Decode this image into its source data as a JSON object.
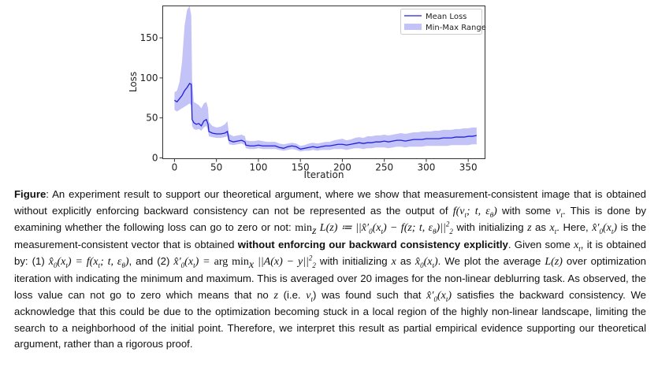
{
  "chart_data": {
    "type": "line",
    "xlabel": "Iteration",
    "ylabel": "Loss",
    "xlim": [
      -14,
      370
    ],
    "ylim": [
      -1,
      190
    ],
    "xticks": [
      0,
      50,
      100,
      150,
      200,
      250,
      300,
      350
    ],
    "yticks": [
      0,
      50,
      100,
      150
    ],
    "legend_position": "top-right",
    "grid": false,
    "series": [
      {
        "name": "Mean Loss",
        "color": "#2020dd",
        "x": [
          0,
          3,
          6,
          9,
          12,
          15,
          18,
          20,
          21,
          23,
          26,
          29,
          32,
          35,
          38,
          40,
          41,
          45,
          50,
          55,
          60,
          63,
          65,
          70,
          75,
          80,
          84,
          85,
          90,
          95,
          100,
          105,
          110,
          115,
          120,
          125,
          130,
          135,
          140,
          145,
          150,
          155,
          160,
          165,
          170,
          175,
          180,
          185,
          190,
          195,
          200,
          205,
          210,
          215,
          220,
          225,
          230,
          235,
          240,
          245,
          250,
          255,
          260,
          265,
          270,
          275,
          280,
          285,
          290,
          295,
          300,
          305,
          310,
          315,
          320,
          325,
          330,
          335,
          340,
          345,
          350,
          355,
          360
        ],
        "values": [
          72,
          70,
          74,
          78,
          84,
          88,
          93,
          92,
          48,
          44,
          42,
          43,
          40,
          46,
          48,
          42,
          33,
          31,
          30,
          30,
          31,
          33,
          22,
          20,
          21,
          22,
          20,
          16,
          15,
          15,
          16,
          15,
          15,
          15,
          15,
          13,
          12,
          14,
          15,
          14,
          11,
          12,
          13,
          14,
          13,
          14,
          15,
          15,
          16,
          17,
          17,
          16,
          17,
          18,
          19,
          18,
          19,
          19,
          20,
          20,
          21,
          20,
          21,
          22,
          22,
          21,
          22,
          23,
          23,
          23,
          24,
          24,
          24,
          24,
          25,
          25,
          25,
          26,
          26,
          26,
          27,
          27,
          28
        ]
      },
      {
        "name": "Min-Max Range",
        "color": "#aaaaf5",
        "x": [
          0,
          3,
          6,
          9,
          12,
          15,
          18,
          20,
          21,
          23,
          26,
          29,
          32,
          35,
          38,
          40,
          41,
          45,
          50,
          55,
          60,
          63,
          65,
          70,
          75,
          80,
          84,
          85,
          90,
          95,
          100,
          105,
          110,
          115,
          120,
          125,
          130,
          135,
          140,
          145,
          150,
          155,
          160,
          165,
          170,
          175,
          180,
          185,
          190,
          195,
          200,
          205,
          210,
          215,
          220,
          225,
          230,
          235,
          240,
          245,
          250,
          255,
          260,
          265,
          270,
          275,
          280,
          285,
          290,
          295,
          300,
          305,
          310,
          315,
          320,
          325,
          330,
          335,
          340,
          345,
          350,
          355,
          360
        ],
        "min": [
          60,
          58,
          60,
          62,
          64,
          66,
          68,
          66,
          40,
          36,
          35,
          36,
          34,
          38,
          40,
          34,
          27,
          26,
          25,
          25,
          26,
          27,
          17,
          16,
          17,
          18,
          16,
          12,
          11,
          11,
          12,
          11,
          11,
          11,
          11,
          10,
          9,
          10,
          11,
          10,
          8,
          9,
          9,
          10,
          9,
          10,
          10,
          10,
          11,
          11,
          11,
          10,
          11,
          12,
          12,
          11,
          12,
          12,
          13,
          13,
          13,
          12,
          13,
          14,
          14,
          13,
          14,
          14,
          14,
          14,
          15,
          15,
          15,
          15,
          15,
          15,
          16,
          16,
          16,
          16,
          16,
          17,
          17
        ],
        "max": [
          82,
          84,
          95,
          120,
          165,
          185,
          190,
          178,
          98,
          70,
          68,
          66,
          62,
          68,
          70,
          62,
          45,
          40,
          38,
          39,
          42,
          46,
          30,
          27,
          28,
          29,
          27,
          22,
          21,
          21,
          22,
          21,
          20,
          20,
          20,
          18,
          17,
          18,
          19,
          18,
          15,
          16,
          18,
          19,
          18,
          19,
          20,
          20,
          22,
          23,
          24,
          22,
          23,
          25,
          26,
          25,
          27,
          27,
          28,
          28,
          29,
          28,
          29,
          30,
          31,
          30,
          31,
          32,
          32,
          33,
          33,
          33,
          34,
          34,
          35,
          35,
          35,
          36,
          36,
          37,
          37,
          38,
          38
        ]
      }
    ]
  },
  "caption": {
    "label": "Figure",
    "seg1": ":  An experiment result to support our theoretical argument, where we show that measurement-consistent image that is obtained without explicitly enforcing backward consistency can not be represented as the output of ",
    "m1": "f(v",
    "m1sub": "t",
    "m1b": "; t, ε",
    "m1sub2": "θ",
    "m1c": ")",
    "seg2": " with some ",
    "m2": "v",
    "m2sub": "t",
    "seg3": ". This is done by examining whether the following loss can go to zero or not: ",
    "m3min": "min",
    "m3z": "z",
    "m3": " L(z) ≔ ||x̂′",
    "m3sub": "0",
    "m3b": "(x",
    "m3sub2": "t",
    "m3c": ") − f(z; t, ε",
    "m3sub3": "θ",
    "m3d": ")||",
    "m3sup": "2",
    "m3sub4": "2",
    "seg4": " with initializing ",
    "m4": "z",
    "seg5": " as ",
    "m5": "x",
    "m5sub": "t",
    "seg6": ". Here, ",
    "m6": "x̂′",
    "m6sub": "0",
    "m6b": "(x",
    "m6sub2": "t",
    "m6c": ")",
    "seg7": " is the measurement-consistent vector that is obtained ",
    "bold1": "without enforcing our backward consistency explicitly",
    "seg8": ". Given some ",
    "m8": "x",
    "m8sub": "t",
    "seg9": ", it is obtained by: (1) ",
    "m9": "x̂",
    "m9sub": "0",
    "m9b": "(x",
    "m9sub2": "t",
    "m9c": ") = f(x",
    "m9sub3": "t",
    "m9d": "; t, ε",
    "m9sub4": "θ",
    "m9e": ")",
    "seg10": ", and (2) ",
    "m10": "x̂′",
    "m10sub": "0",
    "m10b": "(x",
    "m10sub2": "t",
    "m10c": ") =",
    "m11": "arg min",
    "m11x": "x",
    "m11b": " ||A(x) − y||",
    "m11sup": "2",
    "m11sub": "2",
    "seg11": " with initializing ",
    "m12": "x",
    "seg12": " as ",
    "m13": "x̂",
    "m13sub": "0",
    "m13b": "(x",
    "m13sub2": "t",
    "m13c": ")",
    "seg13": ". We plot the average ",
    "m14": "L(z)",
    "seg14": " over optimization iteration with indicating the minimum and maximum. This is averaged over 20 images for the non-linear deblurring task. As observed, the loss value can not go to zero which means that no ",
    "m15": "z",
    "seg15": " (i.e. ",
    "m16": "v",
    "m16sub": "t",
    "seg16": ") was found such that ",
    "m17": "x̂′",
    "m17sub": "0",
    "m17b": "(x",
    "m17sub2": "t",
    "m17c": ")",
    "seg17": " satisfies the backward consistency. We acknowledge that this could be due to the optimization becoming stuck in a local region of the highly non-linear landscape, limiting the search to a neighborhood of the initial point. Therefore, we interpret this result as partial empirical evidence supporting our theoretical argument, rather than a rigorous proof."
  }
}
